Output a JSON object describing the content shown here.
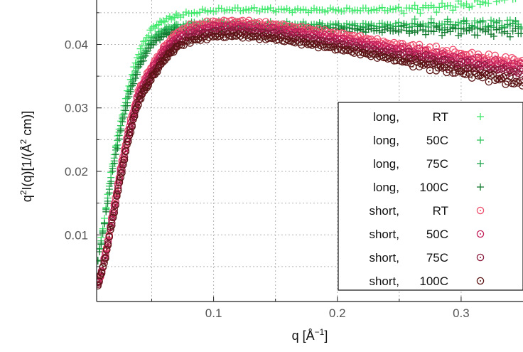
{
  "chart_data": {
    "type": "scatter",
    "xlabel": "q [Å⁻¹]",
    "ylabel": "q²I(q)[1/(Å² cm)]",
    "xlim": [
      0.0055,
      0.35
    ],
    "ylim": [
      -0.0005,
      0.047
    ],
    "xticks": [
      {
        "value": 0.1,
        "label": "0.1"
      },
      {
        "value": 0.2,
        "label": "0.2"
      },
      {
        "value": 0.3,
        "label": "0.3"
      }
    ],
    "yticks": [
      {
        "value": 0.01,
        "label": "0.01"
      },
      {
        "value": 0.02,
        "label": "0.02"
      },
      {
        "value": 0.03,
        "label": "0.03"
      },
      {
        "value": 0.04,
        "label": "0.04"
      }
    ],
    "minor_x": [
      0.05,
      0.15,
      0.25
    ],
    "minor_y": [
      0.005,
      0.015,
      0.025,
      0.035,
      0.045
    ],
    "grid": true,
    "legend_position": "right",
    "series": [
      {
        "name": "long,      RT",
        "label_parts": [
          "long,",
          "RT"
        ],
        "marker": "plus",
        "color": "#3ee86a",
        "points": [
          [
            0.0065,
            0.006
          ],
          [
            0.012,
            0.013
          ],
          [
            0.018,
            0.021
          ],
          [
            0.025,
            0.028
          ],
          [
            0.032,
            0.034
          ],
          [
            0.04,
            0.039
          ],
          [
            0.05,
            0.0425
          ],
          [
            0.06,
            0.0438
          ],
          [
            0.07,
            0.0445
          ],
          [
            0.09,
            0.0452
          ],
          [
            0.11,
            0.0455
          ],
          [
            0.14,
            0.0455
          ],
          [
            0.17,
            0.0454
          ],
          [
            0.2,
            0.0454
          ],
          [
            0.23,
            0.0455
          ],
          [
            0.26,
            0.0456
          ],
          [
            0.29,
            0.046
          ],
          [
            0.31,
            0.0464
          ],
          [
            0.33,
            0.0472
          ],
          [
            0.35,
            0.0478
          ]
        ]
      },
      {
        "name": "long,   50C",
        "label_parts": [
          "long,",
          "50C"
        ],
        "marker": "plus",
        "color": "#2fc45b",
        "points": [
          [
            0.0065,
            0.006
          ],
          [
            0.012,
            0.0125
          ],
          [
            0.018,
            0.0205
          ],
          [
            0.025,
            0.0275
          ],
          [
            0.032,
            0.033
          ],
          [
            0.04,
            0.0375
          ],
          [
            0.05,
            0.041
          ],
          [
            0.06,
            0.0424
          ],
          [
            0.07,
            0.043
          ],
          [
            0.09,
            0.0435
          ],
          [
            0.11,
            0.0435
          ],
          [
            0.14,
            0.0433
          ],
          [
            0.17,
            0.0432
          ],
          [
            0.2,
            0.0431
          ],
          [
            0.23,
            0.0431
          ],
          [
            0.26,
            0.0432
          ],
          [
            0.29,
            0.0433
          ],
          [
            0.32,
            0.0434
          ],
          [
            0.35,
            0.0434
          ]
        ]
      },
      {
        "name": "long,   75C",
        "label_parts": [
          "long,",
          "75C"
        ],
        "marker": "plus",
        "color": "#1ea34a",
        "points": [
          [
            0.0065,
            0.006
          ],
          [
            0.012,
            0.0122
          ],
          [
            0.018,
            0.02
          ],
          [
            0.025,
            0.027
          ],
          [
            0.032,
            0.0325
          ],
          [
            0.04,
            0.037
          ],
          [
            0.05,
            0.0405
          ],
          [
            0.06,
            0.042
          ],
          [
            0.07,
            0.0426
          ],
          [
            0.09,
            0.0432
          ],
          [
            0.11,
            0.0432
          ],
          [
            0.14,
            0.043
          ],
          [
            0.17,
            0.0429
          ],
          [
            0.2,
            0.0428
          ],
          [
            0.23,
            0.0427
          ],
          [
            0.26,
            0.0428
          ],
          [
            0.29,
            0.0429
          ],
          [
            0.32,
            0.043
          ],
          [
            0.35,
            0.0431
          ]
        ]
      },
      {
        "name": "long, 100C",
        "label_parts": [
          "long,",
          "100C"
        ],
        "marker": "plus",
        "color": "#117a2e",
        "points": [
          [
            0.0065,
            0.0058
          ],
          [
            0.012,
            0.012
          ],
          [
            0.018,
            0.0195
          ],
          [
            0.025,
            0.0265
          ],
          [
            0.032,
            0.032
          ],
          [
            0.04,
            0.0365
          ],
          [
            0.05,
            0.04
          ],
          [
            0.06,
            0.0415
          ],
          [
            0.07,
            0.042
          ],
          [
            0.09,
            0.0425
          ],
          [
            0.11,
            0.0426
          ],
          [
            0.14,
            0.0425
          ],
          [
            0.17,
            0.0424
          ],
          [
            0.2,
            0.0423
          ],
          [
            0.23,
            0.0422
          ],
          [
            0.26,
            0.0422
          ],
          [
            0.29,
            0.0421
          ],
          [
            0.32,
            0.042
          ],
          [
            0.35,
            0.0418
          ]
        ]
      },
      {
        "name": "short,      RT",
        "label_parts": [
          "short,",
          "RT"
        ],
        "marker": "circle",
        "color": "#ef4f6f",
        "points": [
          [
            0.0065,
            0.0025
          ],
          [
            0.01,
            0.0045
          ],
          [
            0.015,
            0.0095
          ],
          [
            0.02,
            0.015
          ],
          [
            0.025,
            0.0205
          ],
          [
            0.03,
            0.0255
          ],
          [
            0.035,
            0.0295
          ],
          [
            0.04,
            0.033
          ],
          [
            0.05,
            0.0365
          ],
          [
            0.06,
            0.0395
          ],
          [
            0.07,
            0.0418
          ],
          [
            0.08,
            0.0428
          ],
          [
            0.1,
            0.0435
          ],
          [
            0.12,
            0.0436
          ],
          [
            0.15,
            0.0431
          ],
          [
            0.18,
            0.0423
          ],
          [
            0.21,
            0.0414
          ],
          [
            0.24,
            0.0402
          ],
          [
            0.27,
            0.0392
          ],
          [
            0.3,
            0.0384
          ],
          [
            0.32,
            0.0378
          ],
          [
            0.35,
            0.0372
          ]
        ]
      },
      {
        "name": "short,   50C",
        "label_parts": [
          "short,",
          "50C"
        ],
        "marker": "circle",
        "color": "#c4205c",
        "points": [
          [
            0.0065,
            0.0024
          ],
          [
            0.01,
            0.0044
          ],
          [
            0.015,
            0.0093
          ],
          [
            0.02,
            0.0147
          ],
          [
            0.025,
            0.0201
          ],
          [
            0.03,
            0.025
          ],
          [
            0.035,
            0.029
          ],
          [
            0.04,
            0.0325
          ],
          [
            0.05,
            0.036
          ],
          [
            0.06,
            0.039
          ],
          [
            0.07,
            0.041
          ],
          [
            0.08,
            0.042
          ],
          [
            0.1,
            0.0428
          ],
          [
            0.12,
            0.0429
          ],
          [
            0.15,
            0.0424
          ],
          [
            0.18,
            0.0416
          ],
          [
            0.21,
            0.0406
          ],
          [
            0.24,
            0.0395
          ],
          [
            0.27,
            0.0385
          ],
          [
            0.3,
            0.0376
          ],
          [
            0.32,
            0.037
          ],
          [
            0.35,
            0.0364
          ]
        ]
      },
      {
        "name": "short,   75C",
        "label_parts": [
          "short,",
          "75C"
        ],
        "marker": "circle",
        "color": "#8a1a3c",
        "points": [
          [
            0.0065,
            0.0023
          ],
          [
            0.01,
            0.0043
          ],
          [
            0.015,
            0.009
          ],
          [
            0.02,
            0.0143
          ],
          [
            0.025,
            0.0196
          ],
          [
            0.03,
            0.0244
          ],
          [
            0.035,
            0.0284
          ],
          [
            0.04,
            0.0318
          ],
          [
            0.05,
            0.0352
          ],
          [
            0.06,
            0.0382
          ],
          [
            0.07,
            0.0402
          ],
          [
            0.08,
            0.0412
          ],
          [
            0.1,
            0.042
          ],
          [
            0.12,
            0.0421
          ],
          [
            0.15,
            0.0416
          ],
          [
            0.18,
            0.0408
          ],
          [
            0.21,
            0.0398
          ],
          [
            0.24,
            0.0387
          ],
          [
            0.27,
            0.0377
          ],
          [
            0.3,
            0.0367
          ],
          [
            0.32,
            0.0361
          ],
          [
            0.35,
            0.0354
          ]
        ]
      },
      {
        "name": "short, 100C",
        "label_parts": [
          "short,",
          "100C"
        ],
        "marker": "circle",
        "color": "#5a1414",
        "points": [
          [
            0.0065,
            0.0022
          ],
          [
            0.01,
            0.0042
          ],
          [
            0.015,
            0.0088
          ],
          [
            0.02,
            0.014
          ],
          [
            0.025,
            0.0192
          ],
          [
            0.03,
            0.024
          ],
          [
            0.035,
            0.028
          ],
          [
            0.04,
            0.0313
          ],
          [
            0.05,
            0.0347
          ],
          [
            0.06,
            0.0376
          ],
          [
            0.07,
            0.0396
          ],
          [
            0.08,
            0.0405
          ],
          [
            0.1,
            0.0413
          ],
          [
            0.12,
            0.0414
          ],
          [
            0.15,
            0.0409
          ],
          [
            0.18,
            0.04
          ],
          [
            0.21,
            0.039
          ],
          [
            0.24,
            0.0379
          ],
          [
            0.27,
            0.0368
          ],
          [
            0.3,
            0.0357
          ],
          [
            0.32,
            0.035
          ],
          [
            0.35,
            0.0338
          ]
        ]
      }
    ]
  }
}
